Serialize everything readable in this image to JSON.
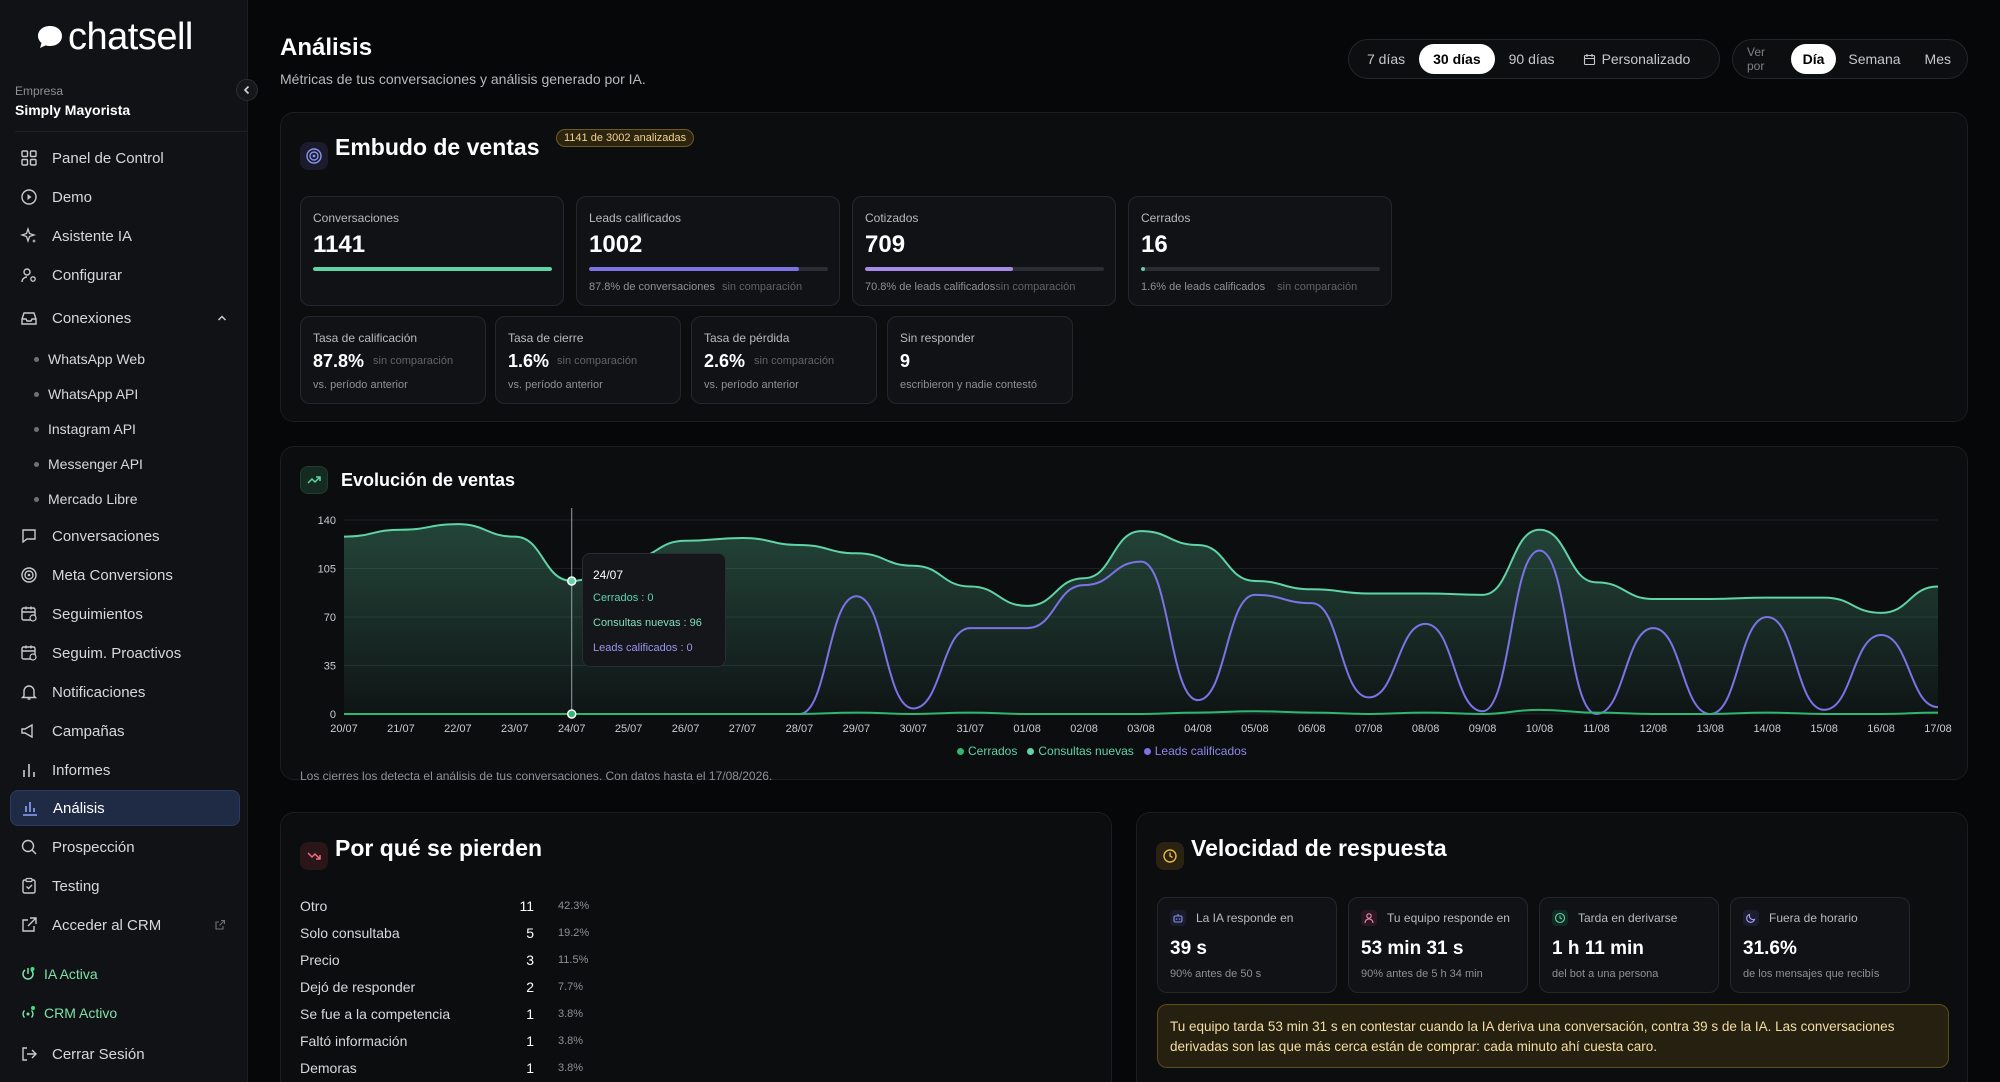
{
  "brand": {
    "name": "chatsell"
  },
  "company": {
    "label": "Empresa",
    "name": "Simply Mayorista"
  },
  "nav": {
    "items": [
      {
        "label": "Panel de Control"
      },
      {
        "label": "Demo"
      },
      {
        "label": "Asistente IA"
      },
      {
        "label": "Configurar"
      },
      {
        "label": "Conexiones"
      },
      {
        "label": "Conversaciones"
      },
      {
        "label": "Meta Conversions"
      },
      {
        "label": "Seguimientos"
      },
      {
        "label": "Seguim. Proactivos"
      },
      {
        "label": "Notificaciones"
      },
      {
        "label": "Campañas"
      },
      {
        "label": "Informes"
      },
      {
        "label": "Análisis"
      },
      {
        "label": "Prospección"
      },
      {
        "label": "Testing"
      },
      {
        "label": "Acceder al CRM"
      }
    ],
    "connections": [
      "WhatsApp Web",
      "WhatsApp API",
      "Instagram API",
      "Messenger API",
      "Mercado Libre"
    ],
    "status": [
      "IA Activa",
      "CRM Activo"
    ],
    "logout": "Cerrar Sesión"
  },
  "header": {
    "title": "Análisis",
    "subtitle": "Métricas de tus conversaciones y análisis generado por IA.",
    "ranges": [
      "7 días",
      "30 días",
      "90 días",
      "Personalizado"
    ],
    "selected_range": "30 días",
    "view_label": "Ver por",
    "views": [
      "Día",
      "Semana",
      "Mes"
    ],
    "selected_view": "Día"
  },
  "funnel": {
    "title": "Embudo de ventas",
    "badge": "1141 de 3002 analizadas",
    "metrics": [
      {
        "label": "Conversaciones",
        "value": "1141",
        "fill": 1.0,
        "color": "#5fd4a6",
        "foot": "",
        "compare": ""
      },
      {
        "label": "Leads calificados",
        "value": "1002",
        "fill": 0.878,
        "color": "#7b73e6",
        "foot": "87.8% de conversaciones",
        "compare": "sin comparación"
      },
      {
        "label": "Cotizados",
        "value": "709",
        "fill": 0.62,
        "color": "#a88be8",
        "foot": "70.8% de leads calificados",
        "compare": "sin comparación"
      },
      {
        "label": "Cerrados",
        "value": "16",
        "fill": 0.016,
        "color": "#5fd4a6",
        "foot": "1.6% de leads calificados",
        "compare": "sin comparación"
      }
    ],
    "rates": [
      {
        "label": "Tasa de calificación",
        "value": "87.8%",
        "compare": "sin comparación",
        "sub": "vs. período anterior"
      },
      {
        "label": "Tasa de cierre",
        "value": "1.6%",
        "compare": "sin comparación",
        "sub": "vs. período anterior"
      },
      {
        "label": "Tasa de pérdida",
        "value": "2.6%",
        "compare": "sin comparación",
        "sub": "vs. período anterior"
      },
      {
        "label": "Sin responder",
        "value": "9",
        "compare": "",
        "sub": "escribieron y nadie contestó"
      }
    ]
  },
  "evolution": {
    "title": "Evolución de ventas",
    "footnote": "Los cierres los detecta el análisis de tus conversaciones. Con datos hasta el 17/08/2026.",
    "tooltip": {
      "date": "24/07",
      "cerrados": "Cerrados : 0",
      "consultas": "Consultas nuevas : 96",
      "leads": "Leads calificados : 0"
    },
    "legend": [
      "Cerrados",
      "Consultas nuevas",
      "Leads calificados"
    ],
    "colors": {
      "cerrados": "#2fb66f",
      "consultas": "#5fd4a6",
      "leads": "#7b73e6"
    }
  },
  "chart_data": {
    "type": "area",
    "x": [
      "20/07",
      "21/07",
      "22/07",
      "23/07",
      "24/07",
      "25/07",
      "26/07",
      "27/07",
      "28/07",
      "29/07",
      "30/07",
      "31/07",
      "01/08",
      "02/08",
      "03/08",
      "04/08",
      "05/08",
      "06/08",
      "07/08",
      "08/08",
      "09/08",
      "10/08",
      "11/08",
      "12/08",
      "13/08",
      "14/08",
      "15/08",
      "16/08",
      "17/08"
    ],
    "series": [
      {
        "name": "Consultas nuevas",
        "values": [
          128,
          133,
          137,
          128,
          96,
          112,
          125,
          127,
          122,
          116,
          107,
          92,
          78,
          98,
          132,
          122,
          96,
          90,
          87,
          87,
          86,
          133,
          95,
          83,
          83,
          84,
          84,
          73,
          92
        ]
      },
      {
        "name": "Leads calificados",
        "values": [
          0,
          0,
          0,
          0,
          0,
          0,
          0,
          0,
          0,
          85,
          4,
          62,
          62,
          93,
          110,
          10,
          86,
          80,
          12,
          65,
          2,
          118,
          0,
          62,
          0,
          70,
          3,
          57,
          5
        ]
      },
      {
        "name": "Cerrados",
        "values": [
          0,
          0,
          0,
          0,
          0,
          0,
          0,
          0,
          0,
          1,
          0,
          1,
          0,
          0,
          0,
          1,
          2,
          1,
          0,
          1,
          0,
          3,
          1,
          0,
          0,
          1,
          0,
          0,
          1
        ]
      }
    ],
    "yticks": [
      0,
      35,
      70,
      105,
      140
    ],
    "ylim": [
      0,
      140
    ]
  },
  "losses": {
    "title": "Por qué se pierden",
    "rows": [
      {
        "label": "Otro",
        "count": "11",
        "pct": "42.3%"
      },
      {
        "label": "Solo consultaba",
        "count": "5",
        "pct": "19.2%"
      },
      {
        "label": "Precio",
        "count": "3",
        "pct": "11.5%"
      },
      {
        "label": "Dejó de responder",
        "count": "2",
        "pct": "7.7%"
      },
      {
        "label": "Se fue a la competencia",
        "count": "1",
        "pct": "3.8%"
      },
      {
        "label": "Faltó información",
        "count": "1",
        "pct": "3.8%"
      },
      {
        "label": "Demoras",
        "count": "1",
        "pct": "3.8%"
      }
    ]
  },
  "speed": {
    "title": "Velocidad de respuesta",
    "cards": [
      {
        "label": "La IA responde en",
        "value": "39 s",
        "sub": "90% antes de 50 s",
        "icon": "bot-icon"
      },
      {
        "label": "Tu equipo responde en",
        "value": "53 min 31 s",
        "sub": "90% antes de 5 h 34 min",
        "icon": "user-icon"
      },
      {
        "label": "Tarda en derivarse",
        "value": "1 h 11 min",
        "sub": "del bot a una persona",
        "icon": "clock-icon"
      },
      {
        "label": "Fuera de horario",
        "value": "31.6%",
        "sub": "de los mensajes que recibís",
        "icon": "moon-icon"
      }
    ],
    "warning": "Tu equipo tarda 53 min 31 s en contestar cuando la IA deriva una conversación, contra 39 s de la IA. Las conversaciones derivadas son las que más cerca están de comprar: cada minuto ahí cuesta caro."
  }
}
